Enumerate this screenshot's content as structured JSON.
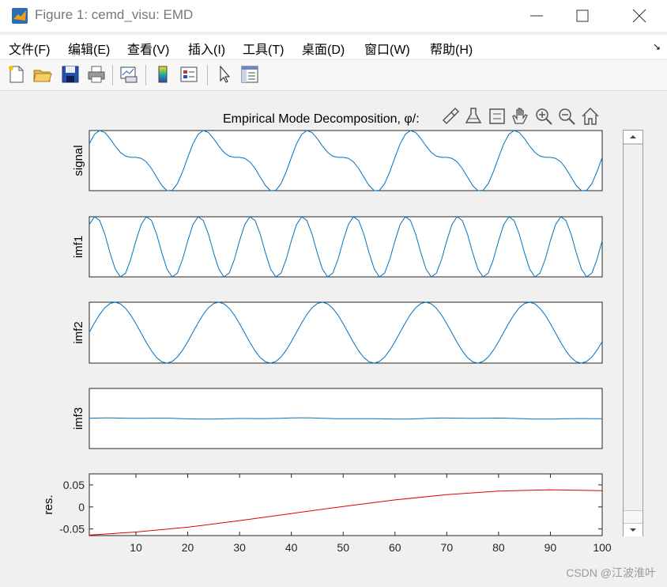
{
  "window": {
    "title": "Figure 1: cemd_visu: EMD",
    "controls": [
      "minimize",
      "maximize",
      "close"
    ]
  },
  "menu": {
    "items": [
      "文件(F)",
      "编辑(E)",
      "查看(V)",
      "插入(I)",
      "工具(T)",
      "桌面(D)",
      "窗口(W)",
      "帮助(H)"
    ],
    "overflow_icon": "arrow-icon"
  },
  "toolbar": {
    "tools": [
      "new-figure-icon",
      "open-file-icon",
      "save-icon",
      "print-icon",
      "link-plot-icon",
      "colorbar-icon",
      "legend-icon",
      "pointer-icon",
      "property-editor-icon"
    ]
  },
  "axes_toolbar": {
    "tools": [
      "brush-icon",
      "data-cursor-icon",
      "rotate-icon",
      "pan-icon",
      "zoom-in-icon",
      "zoom-out-icon",
      "home-icon"
    ]
  },
  "figure": {
    "title": "Empirical Mode Decomposition, φ/:"
  },
  "chart_data": {
    "type": "line",
    "x_range": [
      1,
      100
    ],
    "x_ticks": [
      10,
      20,
      30,
      40,
      50,
      60,
      70,
      80,
      90,
      100
    ],
    "colors": {
      "imf": "#0072bd",
      "residual": "#e00000"
    },
    "panels": [
      {
        "ylabel": "signal",
        "series_formula": "sin(2π·x/20) + 0.5·sin(2π·x/10+0.2)",
        "show_y_ticks": false
      },
      {
        "ylabel": "imf1",
        "series_formula": "sin(2π·x/10+0.2)",
        "show_y_ticks": false
      },
      {
        "ylabel": "imf2",
        "series_formula": "sin(2π·x/20 - 0.3)",
        "show_y_ticks": false
      },
      {
        "ylabel": "imf3",
        "series_formula": "≈0 (small ripple)",
        "show_y_ticks": false
      },
      {
        "ylabel": "res.",
        "y_ticks": [
          "0.05",
          "0",
          "-0.05"
        ],
        "ylim": [
          -0.065,
          0.075
        ],
        "values": [
          [
            1,
            -0.064
          ],
          [
            10,
            -0.057
          ],
          [
            20,
            -0.046
          ],
          [
            30,
            -0.031
          ],
          [
            40,
            -0.015
          ],
          [
            50,
            0.001
          ],
          [
            60,
            0.016
          ],
          [
            70,
            0.028
          ],
          [
            80,
            0.036
          ],
          [
            90,
            0.039
          ],
          [
            100,
            0.037
          ]
        ]
      }
    ]
  },
  "watermark": "CSDN @江波淮叶"
}
